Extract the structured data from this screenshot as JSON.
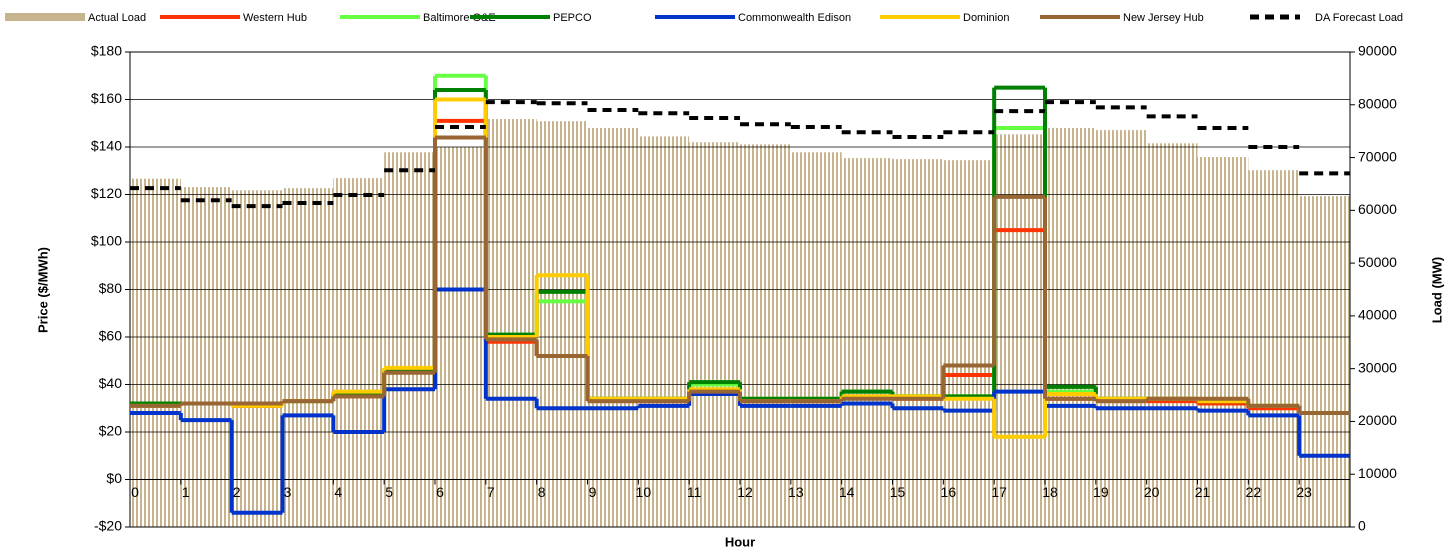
{
  "chart_data": {
    "type": "step-line",
    "xlabel": "Hour",
    "ylabel": "Price ($/MWh)",
    "y2label": "Load (MW)",
    "x": [
      0,
      1,
      2,
      3,
      4,
      5,
      6,
      7,
      8,
      9,
      10,
      11,
      12,
      13,
      14,
      15,
      16,
      17,
      18,
      19,
      20,
      21,
      22,
      23
    ],
    "xlim": [
      0,
      24
    ],
    "xticks": [
      0,
      1,
      2,
      3,
      4,
      5,
      6,
      7,
      8,
      9,
      10,
      11,
      12,
      13,
      14,
      15,
      16,
      17,
      18,
      19,
      20,
      21,
      22,
      23
    ],
    "ylim": [
      -20,
      180
    ],
    "yticks": [
      {
        "value": -20,
        "label": "-$20"
      },
      {
        "value": 0,
        "label": "$0"
      },
      {
        "value": 20,
        "label": "$20"
      },
      {
        "value": 40,
        "label": "$40"
      },
      {
        "value": 60,
        "label": "$60"
      },
      {
        "value": 80,
        "label": "$80"
      },
      {
        "value": 100,
        "label": "$100"
      },
      {
        "value": 120,
        "label": "$120"
      },
      {
        "value": 140,
        "label": "$140"
      },
      {
        "value": 160,
        "label": "$160"
      },
      {
        "value": 180,
        "label": "$180"
      }
    ],
    "y2lim": [
      0,
      90000
    ],
    "y2ticks": [
      0,
      10000,
      20000,
      30000,
      40000,
      50000,
      60000,
      70000,
      80000,
      90000
    ],
    "grid": true,
    "legend": "top",
    "series": [
      {
        "name": "Actual Load",
        "color": "#c8b48c",
        "axis": "y2",
        "kind": "bar",
        "values": [
          66000,
          64400,
          63800,
          64200,
          66100,
          71000,
          72000,
          77300,
          76900,
          75600,
          74000,
          72900,
          72500,
          71000,
          69900,
          69700,
          69500,
          74400,
          75600,
          75200,
          72700,
          70100,
          67600,
          62700
        ]
      },
      {
        "name": "Western Hub",
        "color": "#ff3300",
        "values": [
          32,
          32,
          31,
          33,
          35,
          45,
          151,
          58,
          52,
          33,
          33,
          37,
          33,
          33,
          35,
          34,
          44,
          105,
          34,
          33,
          33,
          32,
          30,
          28
        ]
      },
      {
        "name": "Baltimore G&E",
        "color": "#66ff44",
        "values": [
          32,
          32,
          32,
          33,
          36,
          46,
          170,
          61,
          75,
          34,
          34,
          40,
          34,
          34,
          37,
          35,
          35,
          148,
          37,
          34,
          34,
          33,
          31,
          28
        ]
      },
      {
        "name": "PEPCO",
        "color": "#008000",
        "values": [
          32,
          32,
          32,
          33,
          36,
          46,
          164,
          61,
          79,
          34,
          34,
          41,
          34,
          34,
          37,
          35,
          35,
          165,
          39,
          34,
          34,
          33,
          31,
          28
        ]
      },
      {
        "name": "Commonwealth Edison",
        "color": "#0033cc",
        "values": [
          28,
          25,
          -14,
          27,
          20,
          38,
          80,
          34,
          30,
          30,
          31,
          36,
          31,
          31,
          32,
          30,
          29,
          37,
          31,
          30,
          30,
          29,
          27,
          10
        ]
      },
      {
        "name": "Dominion",
        "color": "#ffcc00",
        "values": [
          31,
          32,
          31,
          33,
          37,
          47,
          160,
          60,
          86,
          34,
          34,
          38,
          33,
          33,
          35,
          35,
          34,
          18,
          36,
          34,
          34,
          33,
          31,
          28
        ]
      },
      {
        "name": "New Jersey Hub",
        "color": "#996633",
        "values": [
          31,
          32,
          32,
          33,
          35,
          45,
          144,
          59,
          52,
          33,
          33,
          37,
          33,
          33,
          34,
          34,
          48,
          119,
          34,
          33,
          34,
          34,
          31,
          28
        ]
      },
      {
        "name": "DA Forecast Load",
        "color": "#000000",
        "axis": "y2",
        "dashed": true,
        "values": [
          64200,
          61900,
          60800,
          61400,
          62900,
          67600,
          75800,
          80500,
          80300,
          79000,
          78400,
          77500,
          76300,
          75800,
          74800,
          73900,
          74800,
          78800,
          80500,
          79500,
          77800,
          75600,
          72000,
          67000
        ]
      }
    ]
  }
}
